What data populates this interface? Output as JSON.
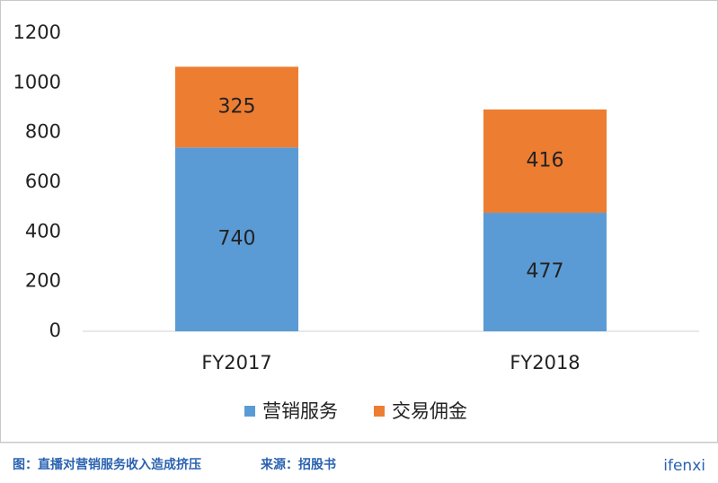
{
  "chart_data": {
    "type": "stacked-bar",
    "categories": [
      "FY2017",
      "FY2018"
    ],
    "series": [
      {
        "name": "营销服务",
        "color": "#5b9bd5",
        "values": [
          740,
          477
        ]
      },
      {
        "name": "交易佣金",
        "color": "#ed7d31",
        "values": [
          325,
          416
        ]
      }
    ],
    "ylim": [
      0,
      1200
    ],
    "yticks": [
      0,
      200,
      400,
      600,
      800,
      1000,
      1200
    ],
    "grid": false,
    "legend": "bottom"
  },
  "footer": {
    "caption": "图：直播对营销服务收入造成挤压",
    "source": "来源：招股书",
    "logo": "ifenxi"
  }
}
